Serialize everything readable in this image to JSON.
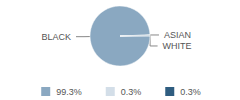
{
  "chart_data": {
    "type": "pie",
    "categories": [
      "BLACK",
      "ASIAN",
      "WHITE"
    ],
    "values": [
      99.3,
      0.3,
      0.3
    ],
    "value_labels": [
      "99.3%",
      "0.3%",
      "0.3%"
    ],
    "colors": [
      "#8aa8c1",
      "#d3dee8",
      "#2f5d80"
    ],
    "legend": "bottom"
  }
}
